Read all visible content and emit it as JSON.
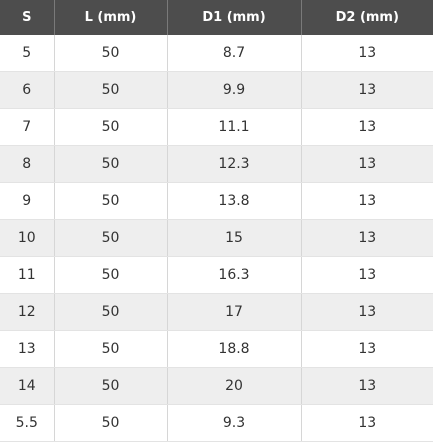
{
  "table": {
    "headers": [
      "S",
      "L (mm)",
      "D1 (mm)",
      "D2 (mm)"
    ],
    "rows": [
      [
        "5",
        "50",
        "8.7",
        "13"
      ],
      [
        "6",
        "50",
        "9.9",
        "13"
      ],
      [
        "7",
        "50",
        "11.1",
        "13"
      ],
      [
        "8",
        "50",
        "12.3",
        "13"
      ],
      [
        "9",
        "50",
        "13.8",
        "13"
      ],
      [
        "10",
        "50",
        "15",
        "13"
      ],
      [
        "11",
        "50",
        "16.3",
        "13"
      ],
      [
        "12",
        "50",
        "17",
        "13"
      ],
      [
        "13",
        "50",
        "18.8",
        "13"
      ],
      [
        "14",
        "50",
        "20",
        "13"
      ],
      [
        "5.5",
        "50",
        "9.3",
        "13"
      ]
    ]
  },
  "colors": {
    "header_bg": "#4d4d4d",
    "header_text": "#ffffff",
    "row_alt_bg": "#eeeeee",
    "row_bg": "#ffffff",
    "cell_text": "#333333"
  }
}
